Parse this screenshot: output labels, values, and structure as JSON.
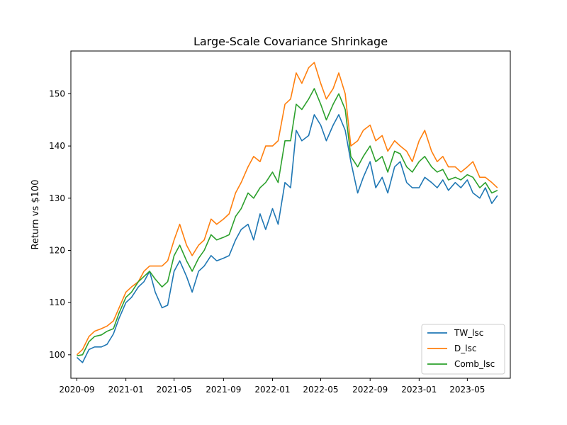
{
  "chart_data": {
    "type": "line",
    "title": "Large-Scale Covariance Shrinkage",
    "xlabel": "",
    "ylabel": "Return vs $100",
    "xlim": [
      "2020-08-17",
      "2023-08-16"
    ],
    "ylim": [
      95.5,
      158.2
    ],
    "x_ticks": [
      "2020-09",
      "2021-01",
      "2021-05",
      "2021-09",
      "2022-01",
      "2022-05",
      "2022-09",
      "2023-01",
      "2023-05"
    ],
    "y_ticks": [
      100,
      110,
      120,
      130,
      140,
      150
    ],
    "grid": false,
    "legend_position": "lower-right",
    "x": [
      "2020-09-01",
      "2020-09-15",
      "2020-10-01",
      "2020-10-15",
      "2020-11-01",
      "2020-11-15",
      "2020-12-01",
      "2020-12-15",
      "2021-01-01",
      "2021-01-15",
      "2021-02-01",
      "2021-02-15",
      "2021-03-01",
      "2021-03-15",
      "2021-04-01",
      "2021-04-15",
      "2021-05-01",
      "2021-05-15",
      "2021-06-01",
      "2021-06-15",
      "2021-07-01",
      "2021-07-15",
      "2021-08-01",
      "2021-08-15",
      "2021-09-01",
      "2021-09-15",
      "2021-10-01",
      "2021-10-15",
      "2021-11-01",
      "2021-11-15",
      "2021-12-01",
      "2021-12-15",
      "2022-01-01",
      "2022-01-15",
      "2022-02-01",
      "2022-02-15",
      "2022-03-01",
      "2022-03-15",
      "2022-04-01",
      "2022-04-15",
      "2022-05-01",
      "2022-05-15",
      "2022-06-01",
      "2022-06-15",
      "2022-07-01",
      "2022-07-15",
      "2022-08-01",
      "2022-08-15",
      "2022-09-01",
      "2022-09-15",
      "2022-10-01",
      "2022-10-15",
      "2022-11-01",
      "2022-11-15",
      "2022-12-01",
      "2022-12-15",
      "2023-01-01",
      "2023-01-15",
      "2023-02-01",
      "2023-02-15",
      "2023-03-01",
      "2023-03-15",
      "2023-04-01",
      "2023-04-15",
      "2023-05-01",
      "2023-05-15",
      "2023-06-01",
      "2023-06-15",
      "2023-07-01",
      "2023-07-15"
    ],
    "series": [
      {
        "name": "TW_lsc",
        "color": "#1f77b4",
        "values": [
          99.5,
          98.5,
          101,
          101.5,
          101.5,
          102,
          104,
          107,
          110,
          111,
          113,
          114,
          116,
          112,
          109,
          109.5,
          116,
          118,
          115,
          112,
          116,
          117,
          119,
          118,
          118.5,
          119,
          122,
          124,
          125,
          122,
          127,
          124,
          128,
          125,
          133,
          132,
          143,
          141,
          142,
          146,
          144,
          141,
          144,
          146,
          143,
          137,
          131,
          134,
          137,
          132,
          134,
          131,
          136,
          137,
          133,
          132,
          132,
          134,
          133,
          132,
          133.5,
          131.5,
          133,
          132,
          133.5,
          131,
          130,
          132,
          129,
          130.5
        ]
      },
      {
        "name": "D_lsc",
        "color": "#ff7f0e",
        "values": [
          100,
          101,
          103.5,
          104.5,
          105,
          105.5,
          106.5,
          109,
          112,
          113,
          114,
          116,
          117,
          117,
          117,
          118,
          122,
          125,
          121,
          119,
          121,
          122,
          126,
          125,
          126,
          127,
          131,
          133,
          136,
          138,
          137,
          140,
          140,
          141,
          148,
          149,
          154,
          152,
          155,
          156,
          152,
          149,
          151,
          154,
          150,
          140,
          141,
          143,
          144,
          141,
          142,
          139,
          141,
          140,
          139,
          137,
          141,
          143,
          139,
          137,
          138,
          136,
          136,
          135,
          136,
          137,
          134,
          134,
          133,
          132
        ]
      },
      {
        "name": "Comb_lsc",
        "color": "#2ca02c",
        "values": [
          99.8,
          100,
          102.5,
          103.5,
          103.8,
          104.5,
          105,
          108,
          111,
          112,
          114,
          115,
          116,
          114.5,
          113,
          114,
          119,
          121,
          118,
          116,
          118.5,
          120,
          123,
          122,
          122.5,
          123,
          126.5,
          128,
          131,
          130,
          132,
          133,
          135,
          133,
          141,
          141,
          148,
          147,
          149,
          151,
          148,
          145,
          148,
          150,
          147,
          138,
          136,
          138,
          140,
          137,
          138,
          135,
          139,
          138.5,
          136,
          135,
          137,
          138,
          136,
          135,
          135.5,
          133.5,
          134,
          133.5,
          134.5,
          134,
          132,
          133,
          131,
          131.5
        ]
      }
    ]
  }
}
